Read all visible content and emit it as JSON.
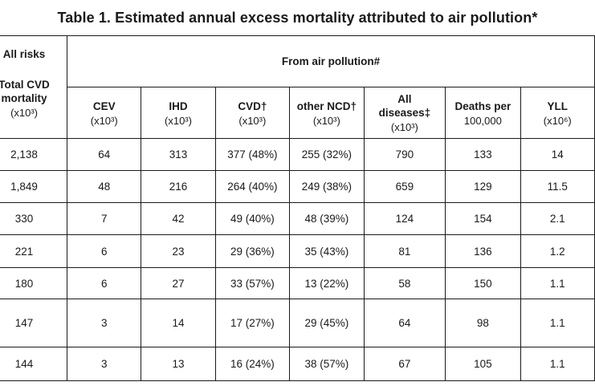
{
  "title": "Table 1. Estimated annual excess mortality attributed to air pollution*",
  "headers": {
    "all_risks": "All risks",
    "total_cvd": "Total CVD mortality",
    "total_cvd_unit": "(x10³)",
    "from_air_pollution": "From air pollution#",
    "cev": "CEV",
    "cev_unit": "(x10³)",
    "ihd": "IHD",
    "ihd_unit": "(x10³)",
    "cvd": "CVD†",
    "cvd_unit": "(x10³)",
    "other_ncd": "other NCD†",
    "other_ncd_unit": "(x10³)",
    "all_diseases": "All diseases‡",
    "all_diseases_unit": "(x10³)",
    "deaths_per": "Deaths per",
    "deaths_per_unit": "100,000",
    "yll": "YLL",
    "yll_unit": "(x10⁶)"
  },
  "rows": [
    {
      "total": "2,138",
      "cev": "64",
      "ihd": "313",
      "cvd": "377 (48%)",
      "ncd": "255 (32%)",
      "all": "790",
      "deaths": "133",
      "yll": "14"
    },
    {
      "total": "1,849",
      "cev": "48",
      "ihd": "216",
      "cvd": "264 (40%)",
      "ncd": "249 (38%)",
      "all": "659",
      "deaths": "129",
      "yll": "11.5"
    },
    {
      "total": "330",
      "cev": "7",
      "ihd": "42",
      "cvd": "49 (40%)",
      "ncd": "48 (39%)",
      "all": "124",
      "deaths": "154",
      "yll": "2.1"
    },
    {
      "total": "221",
      "cev": "6",
      "ihd": "23",
      "cvd": "29 (36%)",
      "ncd": "35 (43%)",
      "all": "81",
      "deaths": "136",
      "yll": "1.2"
    },
    {
      "total": "180",
      "cev": "6",
      "ihd": "27",
      "cvd": "33 (57%)",
      "ncd": "13 (22%)",
      "all": "58",
      "deaths": "150",
      "yll": "1.1"
    },
    {
      "total": "147",
      "cev": "3",
      "ihd": "14",
      "cvd": "17 (27%)",
      "ncd": "29 (45%)",
      "all": "64",
      "deaths": "98",
      "yll": "1.1"
    },
    {
      "total": "144",
      "cev": "3",
      "ihd": "13",
      "cvd": "16 (24%)",
      "ncd": "38 (57%)",
      "all": "67",
      "deaths": "105",
      "yll": "1.1"
    }
  ]
}
